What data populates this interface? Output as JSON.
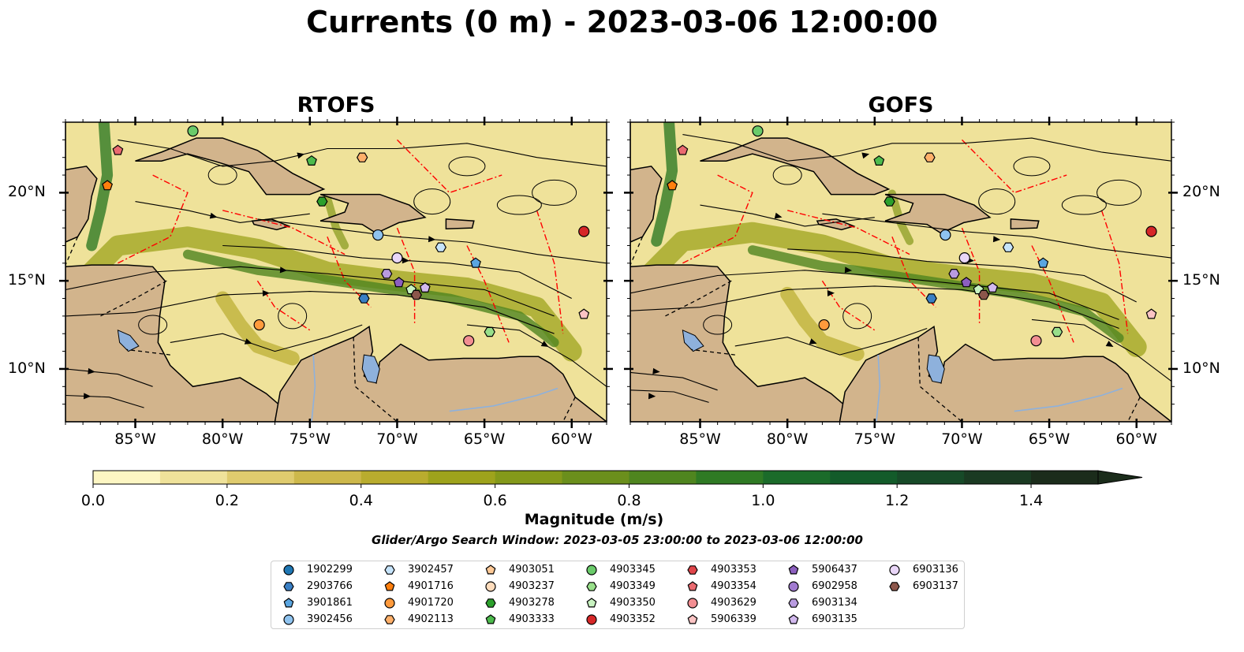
{
  "figure": {
    "title": "Currents (0 m) - 2023-03-06 12:00:00",
    "search_window": "Glider/Argo Search Window: 2023-03-05 23:00:00 to 2023-03-06 12:00:00"
  },
  "panels": [
    {
      "title": "RTOFS"
    },
    {
      "title": "GOFS"
    }
  ],
  "axes": {
    "x_ticks": [
      "85°W",
      "80°W",
      "75°W",
      "70°W",
      "65°W",
      "60°W"
    ],
    "y_ticks": [
      "20°N",
      "15°N",
      "10°N"
    ],
    "lon_range": [
      -89,
      -58
    ],
    "lat_range": [
      7,
      24
    ]
  },
  "colors": {
    "land": "#d2b48c",
    "lakes_rivers": "#8eb1dc",
    "eez_lines": "#ff0000",
    "streamlines": "#000000"
  },
  "colorbar": {
    "label": "Magnitude (m/s)",
    "ticks": [
      "0.0",
      "0.2",
      "0.4",
      "0.6",
      "0.8",
      "1.0",
      "1.2",
      "1.4"
    ],
    "bins": [
      0,
      0.1,
      0.2,
      0.3,
      0.4,
      0.5,
      0.6,
      0.7,
      0.8,
      0.9,
      1.0,
      1.1,
      1.2,
      1.3,
      1.4,
      1.5
    ],
    "colors": [
      "#fdf6c3",
      "#efe29a",
      "#dfcb6e",
      "#cdb84b",
      "#b9ac2e",
      "#9ea31c",
      "#84991a",
      "#6b8f1c",
      "#4f851f",
      "#2f7a24",
      "#1b6b2a",
      "#135b2a",
      "#174a28",
      "#1a3a22",
      "#1b2c1b"
    ],
    "extend": "max"
  },
  "floats": [
    {
      "id": "1902299",
      "marker": "circle",
      "color": "#1f77b4"
    },
    {
      "id": "2903766",
      "marker": "hexagon",
      "color": "#3a7fc4"
    },
    {
      "id": "3901861",
      "marker": "pentagon",
      "color": "#5aa5e0"
    },
    {
      "id": "3902456",
      "marker": "circle",
      "color": "#8fc3ef"
    },
    {
      "id": "3902457",
      "marker": "hexagon",
      "color": "#c6e4fb"
    },
    {
      "id": "4901716",
      "marker": "pentagon",
      "color": "#ff7f0e"
    },
    {
      "id": "4901720",
      "marker": "circle",
      "color": "#ff9a3c"
    },
    {
      "id": "4902113",
      "marker": "hexagon",
      "color": "#ffb06a"
    },
    {
      "id": "4903051",
      "marker": "pentagon",
      "color": "#ffc996"
    },
    {
      "id": "4903237",
      "marker": "circle",
      "color": "#ffdcbc"
    },
    {
      "id": "4903278",
      "marker": "hexagon",
      "color": "#2ca02c"
    },
    {
      "id": "4903333",
      "marker": "pentagon",
      "color": "#4dbb4d"
    },
    {
      "id": "4903345",
      "marker": "circle",
      "color": "#6acb6a"
    },
    {
      "id": "4903349",
      "marker": "hexagon",
      "color": "#98df8a"
    },
    {
      "id": "4903350",
      "marker": "pentagon",
      "color": "#c8f2c0"
    },
    {
      "id": "4903352",
      "marker": "circle",
      "color": "#d62728"
    },
    {
      "id": "4903353",
      "marker": "hexagon",
      "color": "#e0454a"
    },
    {
      "id": "4903354",
      "marker": "pentagon",
      "color": "#ea6a70"
    },
    {
      "id": "4903629",
      "marker": "circle",
      "color": "#f28e92"
    },
    {
      "id": "5906339",
      "marker": "pentagon",
      "color": "#fbc4c4"
    },
    {
      "id": "5906437",
      "marker": "pentagon",
      "color": "#8c5fbf"
    },
    {
      "id": "6902958",
      "marker": "circle",
      "color": "#a17ad0"
    },
    {
      "id": "6903134",
      "marker": "hexagon",
      "color": "#b99be0"
    },
    {
      "id": "6903135",
      "marker": "pentagon",
      "color": "#d2b9ee"
    },
    {
      "id": "6903136",
      "marker": "circle",
      "color": "#e9d6f8"
    },
    {
      "id": "6903137",
      "marker": "hexagon",
      "color": "#8c564b"
    }
  ],
  "float_positions": [
    {
      "id": "4903354",
      "lon": -86.0,
      "lat": 22.4
    },
    {
      "id": "4901716",
      "lon": -86.6,
      "lat": 20.4
    },
    {
      "id": "4903345",
      "lon": -81.7,
      "lat": 23.5
    },
    {
      "id": "4903333",
      "lon": -74.9,
      "lat": 21.8
    },
    {
      "id": "4902113",
      "lon": -72.0,
      "lat": 22.0
    },
    {
      "id": "4903278",
      "lon": -74.3,
      "lat": 19.5
    },
    {
      "id": "3902456",
      "lon": -71.1,
      "lat": 17.6
    },
    {
      "id": "3902457",
      "lon": -67.5,
      "lat": 16.9
    },
    {
      "id": "4903352",
      "lon": -59.3,
      "lat": 17.8
    },
    {
      "id": "6903136",
      "lon": -70.0,
      "lat": 16.3
    },
    {
      "id": "3901861",
      "lon": -65.5,
      "lat": 16.0
    },
    {
      "id": "6903134",
      "lon": -70.6,
      "lat": 15.4
    },
    {
      "id": "5906437",
      "lon": -69.9,
      "lat": 14.9
    },
    {
      "id": "4903350",
      "lon": -69.2,
      "lat": 14.5
    },
    {
      "id": "6903135",
      "lon": -68.4,
      "lat": 14.6
    },
    {
      "id": "6903137",
      "lon": -68.9,
      "lat": 14.2
    },
    {
      "id": "2903766",
      "lon": -71.9,
      "lat": 14.0
    },
    {
      "id": "4901720",
      "lon": -77.9,
      "lat": 12.5
    },
    {
      "id": "4903629",
      "lon": -65.9,
      "lat": 11.6
    },
    {
      "id": "4903349",
      "lon": -64.7,
      "lat": 12.1
    },
    {
      "id": "5906339",
      "lon": -59.3,
      "lat": 13.1
    }
  ]
}
